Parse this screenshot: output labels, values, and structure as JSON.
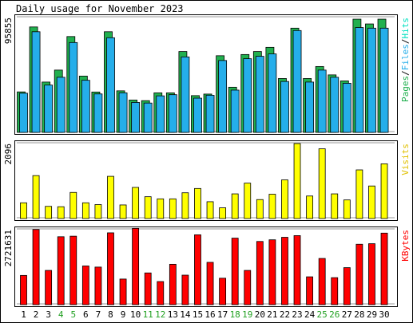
{
  "title": "Daily usage for November 2023",
  "colors": {
    "pages": "#21b04f",
    "files": "#25aeea",
    "hits": "#00e0c0",
    "visits": "#ffff00",
    "kbytes": "#ff0000",
    "weekend_label": "#21a021",
    "weekday_label": "#000000",
    "label_pages": "#21b04f",
    "label_files": "#25aeea",
    "label_visits": "#e0c000",
    "label_kbytes": "#ff0000"
  },
  "chart_data": [
    {
      "type": "bar",
      "name": "hits",
      "ymax_label": "95855",
      "ymax": 95855,
      "legend": [
        {
          "text": "Pages",
          "color_key": "label_pages"
        },
        {
          "text": "/",
          "color_key": "weekday_label"
        },
        {
          "text": "Files",
          "color_key": "label_files"
        },
        {
          "text": "/",
          "color_key": "weekday_label"
        },
        {
          "text": "Hits",
          "color_key": "hits"
        }
      ],
      "categories": [
        "1",
        "2",
        "3",
        "4",
        "5",
        "6",
        "7",
        "8",
        "9",
        "10",
        "11",
        "12",
        "13",
        "14",
        "15",
        "16",
        "17",
        "18",
        "19",
        "20",
        "21",
        "22",
        "23",
        "24",
        "25",
        "26",
        "27",
        "28",
        "29",
        "30"
      ],
      "weekend": [
        4,
        5,
        11,
        12,
        18,
        19,
        25,
        26
      ],
      "series": [
        {
          "name": "Pages",
          "color_key": "pages",
          "values": [
            33800,
            88000,
            42000,
            52000,
            80000,
            47000,
            33700,
            84000,
            34700,
            27000,
            26500,
            33000,
            33000,
            67500,
            30700,
            32000,
            64000,
            37700,
            65000,
            67500,
            71000,
            45000,
            87000,
            45000,
            55000,
            48000,
            43000,
            94500,
            90500,
            94500
          ]
        },
        {
          "name": "Files",
          "color_key": "files",
          "values": [
            32700,
            84000,
            39500,
            46000,
            75000,
            43500,
            32100,
            79000,
            33000,
            25000,
            24500,
            30500,
            31500,
            63000,
            28600,
            31000,
            60000,
            35300,
            61500,
            63500,
            65500,
            42500,
            85000,
            42000,
            52000,
            46000,
            41000,
            87500,
            87000,
            87000
          ]
        }
      ]
    },
    {
      "type": "bar",
      "name": "visits",
      "ymax_label": "2096",
      "ymax": 2096,
      "legend": [
        {
          "text": "Visits",
          "color_key": "label_visits"
        }
      ],
      "series": [
        {
          "name": "Visits",
          "color_key": "visits",
          "values": [
            440,
            1200,
            340,
            330,
            730,
            440,
            390,
            1180,
            380,
            870,
            610,
            550,
            550,
            720,
            840,
            470,
            300,
            690,
            990,
            530,
            680,
            1080,
            2096,
            630,
            1950,
            690,
            520,
            1360,
            910,
            1530
          ]
        }
      ]
    },
    {
      "type": "bar",
      "name": "kbytes",
      "ymax_label": "2721631",
      "ymax": 2721631,
      "legend": [
        {
          "text": "KBytes",
          "color_key": "label_kbytes"
        }
      ],
      "series": [
        {
          "name": "KBytes",
          "color_key": "kbytes",
          "values": [
            1050000,
            2700000,
            1230000,
            2440000,
            2460000,
            1390000,
            1350000,
            2580000,
            920000,
            2740000,
            1140000,
            830000,
            1450000,
            1060000,
            2510000,
            1520000,
            950000,
            2390000,
            1230000,
            2270000,
            2330000,
            2420000,
            2480000,
            1000000,
            1660000,
            970000,
            1330000,
            2170000,
            2190000,
            2570000
          ]
        }
      ]
    }
  ]
}
